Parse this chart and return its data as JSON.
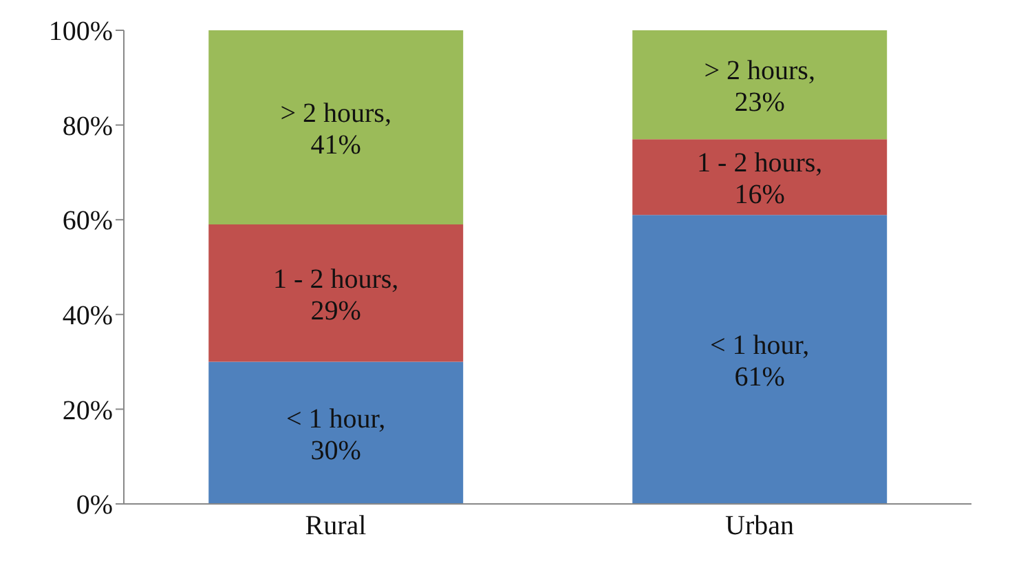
{
  "chart_data": {
    "type": "bar",
    "stacked": true,
    "categories": [
      "Rural",
      "Urban"
    ],
    "series": [
      {
        "color": "#4f81bd",
        "values": [
          30,
          61
        ],
        "value_labels": [
          "< 1 hour, 30%",
          "< 1 hour, 61%"
        ]
      },
      {
        "color": "#c0504d",
        "values": [
          29,
          16
        ],
        "value_labels": [
          "1 - 2 hours, 29%",
          "1 - 2 hours, 16%"
        ]
      },
      {
        "color": "#9bbb59",
        "values": [
          41,
          23
        ],
        "value_labels": [
          "> 2 hours, 41%",
          "> 2 hours, 23%"
        ]
      }
    ],
    "ylim": [
      0,
      100
    ],
    "yticks": [
      {
        "value": 0,
        "label": "0%"
      },
      {
        "value": 20,
        "label": "20%"
      },
      {
        "value": 40,
        "label": "40%"
      },
      {
        "value": 60,
        "label": "60%"
      },
      {
        "value": 80,
        "label": "80%"
      },
      {
        "value": 100,
        "label": "100%"
      }
    ],
    "grid": false,
    "legend": false
  }
}
